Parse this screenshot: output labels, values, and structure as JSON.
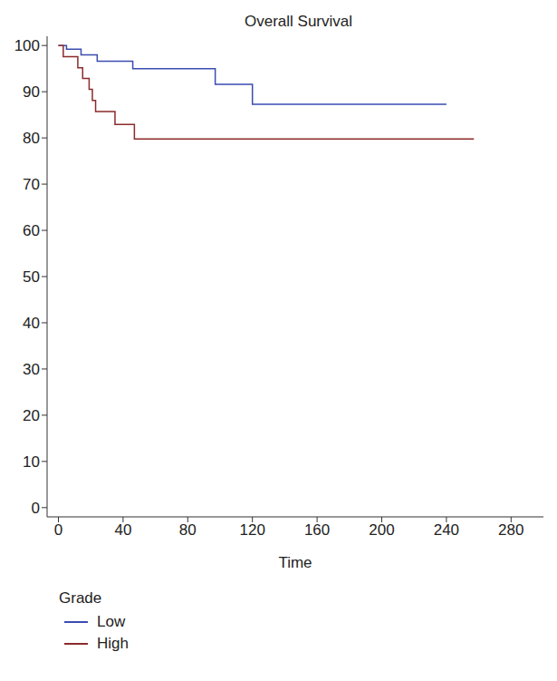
{
  "chart_data": {
    "type": "line",
    "title": "Overall Survival",
    "x_label": "Time",
    "legend_title": "Grade",
    "xlim": [
      -7,
      300
    ],
    "ylim": [
      -2,
      102
    ],
    "xticks": [
      0,
      40,
      80,
      120,
      160,
      200,
      240,
      280
    ],
    "yticks": [
      0,
      10,
      20,
      30,
      40,
      50,
      60,
      70,
      80,
      90,
      100
    ],
    "grid": false,
    "line_style": "step",
    "series": [
      {
        "name": "Low",
        "color": "#3a4cb1",
        "x": [
          0,
          5,
          14,
          24,
          46,
          97,
          120,
          240
        ],
        "values": [
          100,
          99.2,
          98,
          96.6,
          95,
          91.6,
          87.3,
          87.3
        ]
      },
      {
        "name": "High",
        "color": "#8b2b2b",
        "x": [
          0,
          3,
          12,
          15,
          19,
          21,
          23,
          35,
          47,
          257
        ],
        "values": [
          100,
          97.6,
          95.2,
          92.9,
          90.5,
          88.1,
          85.7,
          82.9,
          79.8,
          79.8
        ]
      }
    ]
  }
}
